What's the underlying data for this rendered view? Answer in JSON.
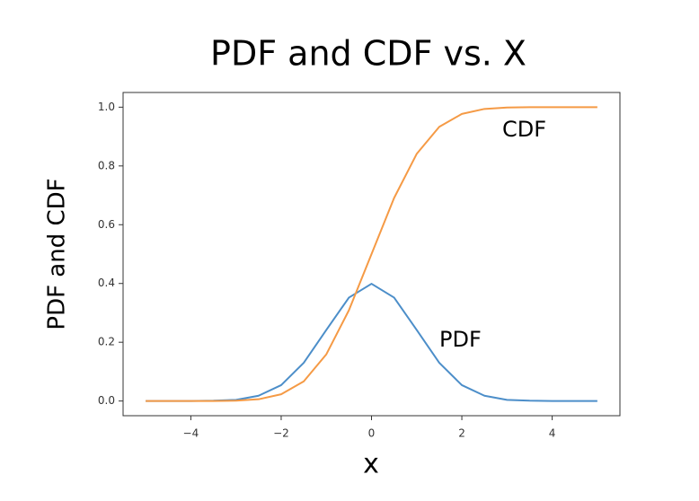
{
  "chart_data": {
    "type": "line",
    "title": "PDF and CDF vs. X",
    "x_label": "x",
    "y_label": "PDF and CDF",
    "x": [
      -5,
      -4.5,
      -4,
      -3.5,
      -3,
      -2.5,
      -2,
      -1.5,
      -1,
      -0.5,
      0,
      0.5,
      1,
      1.5,
      2,
      2.5,
      3,
      3.5,
      4,
      4.5,
      5
    ],
    "series": [
      {
        "name": "PDF",
        "color": "#4c8ec9",
        "values": [
          0,
          0,
          0,
          0.001,
          0.004,
          0.018,
          0.054,
          0.13,
          0.242,
          0.352,
          0.399,
          0.352,
          0.242,
          0.13,
          0.054,
          0.018,
          0.004,
          0.001,
          0,
          0,
          0
        ]
      },
      {
        "name": "CDF",
        "color": "#f59a45",
        "values": [
          0,
          0,
          0,
          0,
          0.001,
          0.006,
          0.023,
          0.067,
          0.159,
          0.309,
          0.5,
          0.691,
          0.841,
          0.933,
          0.977,
          0.994,
          0.999,
          1,
          1,
          1,
          1
        ]
      }
    ],
    "annotations": [
      "PDF",
      "CDF"
    ],
    "xlim": [
      -5.5,
      5.5
    ],
    "ylim": [
      -0.05,
      1.05
    ],
    "xticks": [
      {
        "value": -4,
        "label": "−4"
      },
      {
        "value": -2,
        "label": "−2"
      },
      0,
      2,
      4
    ],
    "yticks": [
      {
        "value": 0,
        "label": "0.0"
      },
      0.2,
      0.4,
      0.6,
      0.8,
      {
        "value": 1,
        "label": "1.0"
      }
    ],
    "grid": false
  }
}
